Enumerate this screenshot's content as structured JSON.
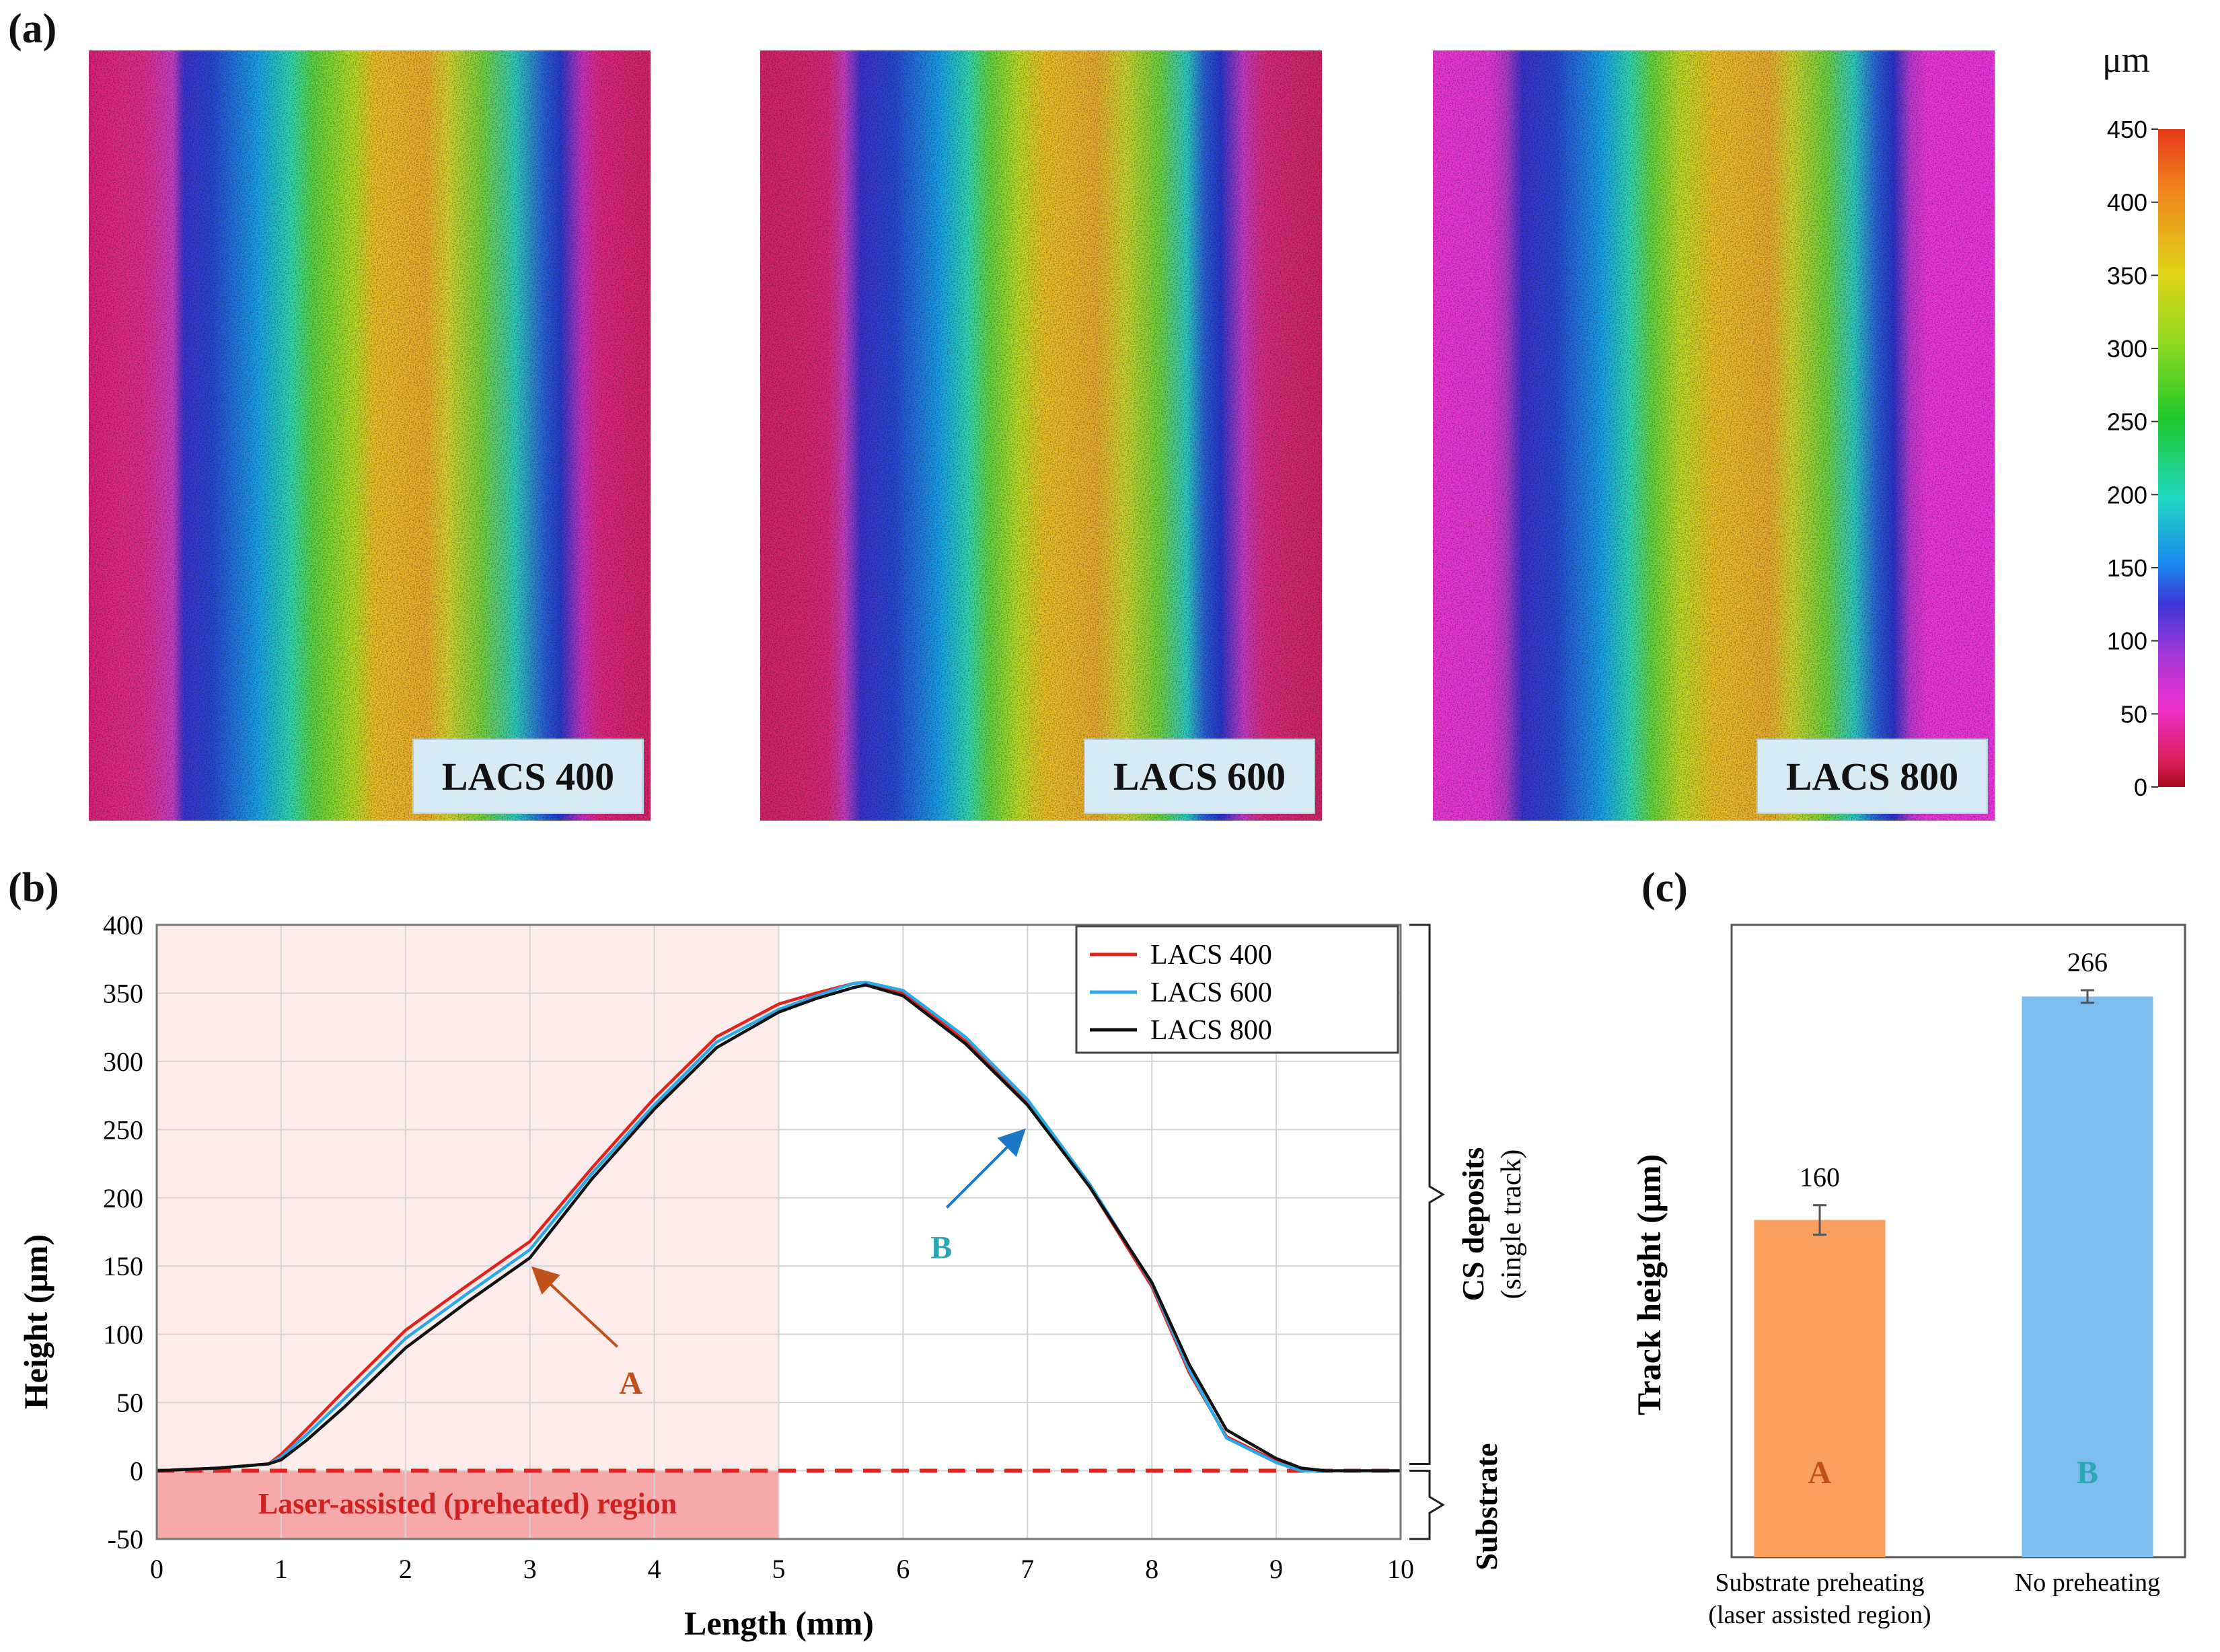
{
  "panel_a": {
    "label": "(a)",
    "panels": [
      {
        "label": "LACS 400"
      },
      {
        "label": "LACS 600"
      },
      {
        "label": "LACS 800"
      }
    ],
    "colorbar": {
      "unit": "μm",
      "min": 0,
      "max": 450,
      "ticks": [
        "450",
        "400",
        "350",
        "300",
        "250",
        "200",
        "150",
        "100",
        "50",
        "0"
      ]
    }
  },
  "panel_b": {
    "label": "(b)"
  },
  "panel_c": {
    "label": "(c)"
  },
  "chart_data": [
    {
      "type": "line",
      "title": "",
      "xlabel": "Length (mm)",
      "ylabel": "Height (μm)",
      "xlim": [
        0,
        10
      ],
      "ylim": [
        -50,
        400
      ],
      "xticks": [
        0,
        1,
        2,
        3,
        4,
        5,
        6,
        7,
        8,
        9,
        10
      ],
      "yticks": [
        -50,
        0,
        50,
        100,
        150,
        200,
        250,
        300,
        350,
        400
      ],
      "grid": true,
      "legend_position": "top-right",
      "series": [
        {
          "name": "LACS 400",
          "color": "#e3221c",
          "x": [
            0,
            0.5,
            0.9,
            1.0,
            1.2,
            1.5,
            2.0,
            2.5,
            3.0,
            3.5,
            4.0,
            4.5,
            5.0,
            5.3,
            5.6,
            5.7,
            6.0,
            6.5,
            7.0,
            7.5,
            8.0,
            8.3,
            8.6,
            9.0,
            9.2,
            9.4,
            10
          ],
          "y": [
            0,
            2,
            5,
            12,
            30,
            58,
            103,
            136,
            168,
            222,
            273,
            318,
            342,
            350,
            357,
            358,
            350,
            315,
            270,
            208,
            135,
            72,
            25,
            7,
            0,
            0,
            0
          ]
        },
        {
          "name": "LACS 600",
          "color": "#29a9e6",
          "x": [
            0,
            0.5,
            0.9,
            1.0,
            1.2,
            1.5,
            2.0,
            2.5,
            3.0,
            3.5,
            4.0,
            4.5,
            5.0,
            5.3,
            5.6,
            5.7,
            6.0,
            6.5,
            7.0,
            7.5,
            8.0,
            8.3,
            8.6,
            9.0,
            9.2,
            9.4,
            10
          ],
          "y": [
            0,
            2,
            5,
            10,
            26,
            52,
            97,
            130,
            162,
            218,
            268,
            314,
            338,
            348,
            357,
            358,
            352,
            318,
            272,
            210,
            137,
            74,
            24,
            6,
            0,
            0,
            0
          ]
        },
        {
          "name": "LACS 800",
          "color": "#111111",
          "x": [
            0,
            0.5,
            0.9,
            1.0,
            1.2,
            1.5,
            2.0,
            2.5,
            3.0,
            3.5,
            4.0,
            4.5,
            5.0,
            5.3,
            5.6,
            5.7,
            6.0,
            6.5,
            7.0,
            7.5,
            8.0,
            8.3,
            8.6,
            9.0,
            9.2,
            9.4,
            10
          ],
          "y": [
            0,
            2,
            5,
            8,
            22,
            46,
            90,
            124,
            156,
            214,
            265,
            310,
            336,
            346,
            354,
            356,
            348,
            313,
            268,
            208,
            138,
            78,
            30,
            9,
            2,
            0,
            0
          ]
        }
      ],
      "shaded_region": {
        "x_start": 0,
        "x_end": 5,
        "label": "Laser-assisted (preheated) region"
      },
      "baseline": {
        "y": 0
      },
      "annotations": [
        {
          "text": "A",
          "target_x": 3.0,
          "target_y": 150,
          "color": "#c0501c"
        },
        {
          "text": "B",
          "target_x": 7.0,
          "target_y": 252,
          "color": "#2aa7b2"
        }
      ],
      "brackets": [
        {
          "label": "CS deposits",
          "sublabel": "(single track)",
          "y_range": [
            0,
            400
          ]
        },
        {
          "label": "Substrate",
          "y_range": [
            -50,
            0
          ]
        }
      ]
    },
    {
      "type": "bar",
      "title": "",
      "xlabel": "",
      "ylabel": "Track height (μm)",
      "ylim": [
        0,
        300
      ],
      "categories": [
        "Substrate preheating (laser assisted region)",
        "No preheating"
      ],
      "category_lines": [
        [
          "Substrate preheating",
          "(laser assisted region)"
        ],
        [
          "No preheating"
        ]
      ],
      "values": [
        160,
        266
      ],
      "value_labels": [
        "160",
        "266"
      ],
      "error": [
        7,
        3
      ],
      "bar_labels": [
        "A",
        "B"
      ],
      "bar_colors": [
        "#f9a05e",
        "#7cbcee"
      ],
      "bar_label_colors": [
        "#c0501c",
        "#2aa7b2"
      ]
    }
  ]
}
